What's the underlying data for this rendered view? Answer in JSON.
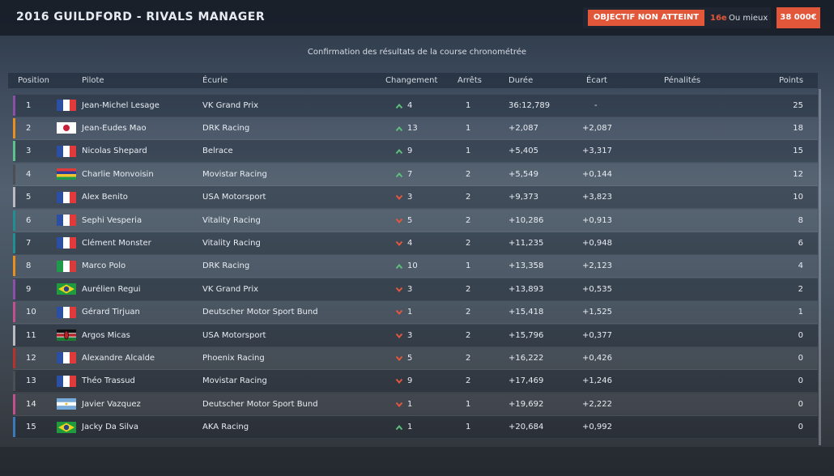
{
  "header": {
    "title": "2016 GUILDFORD - RIVALS MANAGER",
    "objective": "OBJECTIF NON ATTEINT",
    "target_position": "16e",
    "target_note": "Ou mieux",
    "prize": "38 000€"
  },
  "subtitle": "Confirmation des résultats de la course chronométrée",
  "table": {
    "columns": {
      "position": "Position",
      "driver": "Pilote",
      "team": "Écurie",
      "change": "Changement",
      "stops": "Arrêts",
      "time": "Durée",
      "gap": "Écart",
      "penalties": "Pénalités",
      "points": "Points"
    },
    "rows": [
      {
        "position": "1",
        "flag": "fr",
        "driver": "Jean-Michel Lesage",
        "team": "VK Grand Prix",
        "trend": "up",
        "change": "4",
        "stops": "1",
        "time": "36:12,789",
        "gap": "-",
        "points": "25",
        "color": "#8b4fa8"
      },
      {
        "position": "2",
        "flag": "jp",
        "driver": "Jean-Eudes Mao",
        "team": "DRK Racing",
        "trend": "up",
        "change": "13",
        "stops": "1",
        "time": "+2,087",
        "gap": "+2,087",
        "points": "18",
        "color": "#e8901e"
      },
      {
        "position": "3",
        "flag": "fr",
        "driver": "Nicolas Shepard",
        "team": "Belrace",
        "trend": "up",
        "change": "9",
        "stops": "1",
        "time": "+5,405",
        "gap": "+3,317",
        "points": "15",
        "color": "#5ec08a"
      },
      {
        "position": "4",
        "flag": "mu",
        "driver": "Charlie Monvoisin",
        "team": "Movistar Racing",
        "trend": "up",
        "change": "7",
        "stops": "2",
        "time": "+5,549",
        "gap": "+0,144",
        "points": "12",
        "color": "#4a4e55"
      },
      {
        "position": "5",
        "flag": "fr",
        "driver": "Alex Benito",
        "team": "USA Motorsport",
        "trend": "down",
        "change": "3",
        "stops": "2",
        "time": "+9,373",
        "gap": "+3,823",
        "points": "10",
        "color": "#b8bcc2"
      },
      {
        "position": "6",
        "flag": "fr",
        "driver": "Sephi Vesperia",
        "team": "Vitality Racing",
        "trend": "down",
        "change": "5",
        "stops": "2",
        "time": "+10,286",
        "gap": "+0,913",
        "points": "8",
        "color": "#1f8f93"
      },
      {
        "position": "7",
        "flag": "fr",
        "driver": "Clément Monster",
        "team": "Vitality Racing",
        "trend": "down",
        "change": "4",
        "stops": "2",
        "time": "+11,235",
        "gap": "+0,948",
        "points": "6",
        "color": "#1f8f93"
      },
      {
        "position": "8",
        "flag": "it",
        "driver": "Marco Polo",
        "team": "DRK Racing",
        "trend": "up",
        "change": "10",
        "stops": "1",
        "time": "+13,358",
        "gap": "+2,123",
        "points": "4",
        "color": "#e8901e"
      },
      {
        "position": "9",
        "flag": "br",
        "driver": "Aurélien Regui",
        "team": "VK Grand Prix",
        "trend": "down",
        "change": "3",
        "stops": "2",
        "time": "+13,893",
        "gap": "+0,535",
        "points": "2",
        "color": "#8b4fa8"
      },
      {
        "position": "10",
        "flag": "fr",
        "driver": "Gérard Tirjuan",
        "team": "Deutscher Motor Sport Bund",
        "trend": "down",
        "change": "1",
        "stops": "2",
        "time": "+15,418",
        "gap": "+1,525",
        "points": "1",
        "color": "#c2508c"
      },
      {
        "position": "11",
        "flag": "ke",
        "driver": "Argos Micas",
        "team": "USA Motorsport",
        "trend": "down",
        "change": "3",
        "stops": "2",
        "time": "+15,796",
        "gap": "+0,377",
        "points": "0",
        "color": "#b8bcc2"
      },
      {
        "position": "12",
        "flag": "fr",
        "driver": "Alexandre Alcalde",
        "team": "Phoenix Racing",
        "trend": "down",
        "change": "5",
        "stops": "2",
        "time": "+16,222",
        "gap": "+0,426",
        "points": "0",
        "color": "#b8322a"
      },
      {
        "position": "13",
        "flag": "fr",
        "driver": "Théo Trassud",
        "team": "Movistar Racing",
        "trend": "down",
        "change": "9",
        "stops": "2",
        "time": "+17,469",
        "gap": "+1,246",
        "points": "0",
        "color": "#4a4e55"
      },
      {
        "position": "14",
        "flag": "ar",
        "driver": "Javier Vazquez",
        "team": "Deutscher Motor Sport Bund",
        "trend": "down",
        "change": "1",
        "stops": "1",
        "time": "+19,692",
        "gap": "+2,222",
        "points": "0",
        "color": "#c2508c"
      },
      {
        "position": "15",
        "flag": "br",
        "driver": "Jacky Da Silva",
        "team": "AKA Racing",
        "trend": "up",
        "change": "1",
        "stops": "1",
        "time": "+20,684",
        "gap": "+0,992",
        "points": "0",
        "color": "#3a7ab8"
      }
    ]
  }
}
